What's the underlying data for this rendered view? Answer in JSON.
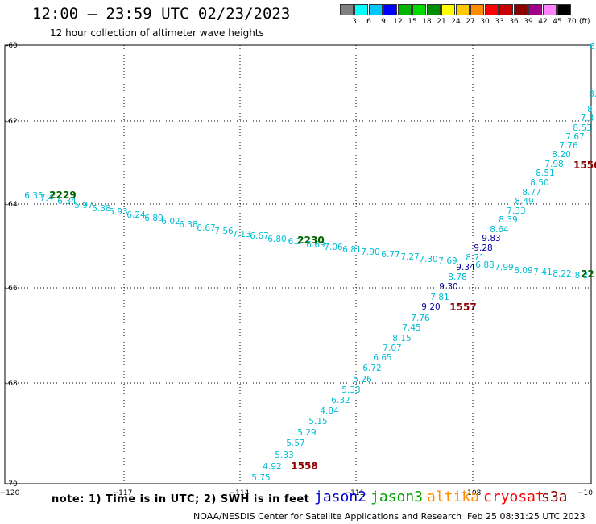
{
  "header": {
    "title": "12:00 – 23:59 UTC 02/23/2023",
    "subtitle": "12 hour collection of altimeter wave heights"
  },
  "colorbar": {
    "unit": "(ft)",
    "colors": [
      "#808080",
      "#00ffff",
      "#00c8ff",
      "#0000ff",
      "#00b400",
      "#00dc00",
      "#008c00",
      "#ffff00",
      "#ffc800",
      "#ff8c00",
      "#ff0000",
      "#c80000",
      "#8c0000",
      "#a0008c",
      "#ff82ff",
      "#000000"
    ],
    "labels": [
      "3",
      "6",
      "9",
      "12",
      "15",
      "18",
      "21",
      "24",
      "27",
      "30",
      "33",
      "36",
      "39",
      "42",
      "45",
      "70"
    ]
  },
  "map": {
    "lon_ticks": [
      "−120",
      "−117",
      "−114",
      "−111",
      "−108",
      "−10"
    ],
    "lat_ticks": [
      "-60",
      "-62",
      "-64",
      "-66",
      "-68",
      "-70"
    ]
  },
  "tracks": {
    "track_a": {
      "time_labels": [
        {
          "text": "1558",
          "color": "#8c0000"
        }
      ],
      "values": [
        "5.75",
        "4.92",
        "5.33",
        "5.57",
        "5.29",
        "5.15",
        "4.84",
        "6.32",
        "5.33",
        "5.26",
        "6.72",
        "6.65",
        "7.07",
        "8.15",
        "7.45",
        "7.76",
        "9.20",
        "7.81",
        "9.30",
        "8.78",
        "9.34",
        "8.71",
        "9.28",
        "9.83",
        "8.64",
        "8.39",
        "7.33",
        "8.49",
        "8.77",
        "8.50",
        "8.51",
        "7.98",
        "8.20",
        "7.76",
        "7.67",
        "8.53",
        "7.3",
        "8.",
        "8."
      ],
      "mid_labels": [
        {
          "text": "1557",
          "color": "#8c0000"
        }
      ],
      "end_labels": [
        {
          "text": "1556",
          "color": "#8c0000"
        },
        {
          "text": "6.",
          "color": "#00bcd4"
        }
      ]
    },
    "track_b": {
      "time_labels": [
        {
          "text": "2229",
          "color": "#006400"
        },
        {
          "text": "2230",
          "color": "#006400"
        },
        {
          "text": "22",
          "color": "#006400"
        }
      ],
      "values": [
        "6.35",
        "7.4",
        "6.34",
        "5.97",
        "5.38",
        "5.93",
        "6.24",
        "6.89",
        "6.02",
        "6.38",
        "6.67",
        "7.56",
        "7.13",
        "6.67",
        "6.80",
        "6.2",
        "6.69",
        "7.06",
        "6.81",
        "7.90",
        "6.77",
        "7.27",
        "7.30",
        "7.69",
        "6.88",
        "7.99",
        "8.09",
        "7.41",
        "8.22",
        "8.2"
      ]
    }
  },
  "footer": {
    "note": "note:  1) Time is in UTC;  2) SWH is in feet",
    "satellites": [
      {
        "name": "jason2",
        "color": "#0000cc"
      },
      {
        "name": "jason3",
        "color": "#00a000"
      },
      {
        "name": "altika",
        "color": "#ff8c00"
      },
      {
        "name": "cryosat",
        "color": "#ff0000"
      },
      {
        "name": "s3a",
        "color": "#8c0000"
      }
    ],
    "credit": "NOAA/NESDIS Center for Satellite Applications and Research",
    "timestamp": "Feb 25 08:31:25 UTC 2023"
  }
}
